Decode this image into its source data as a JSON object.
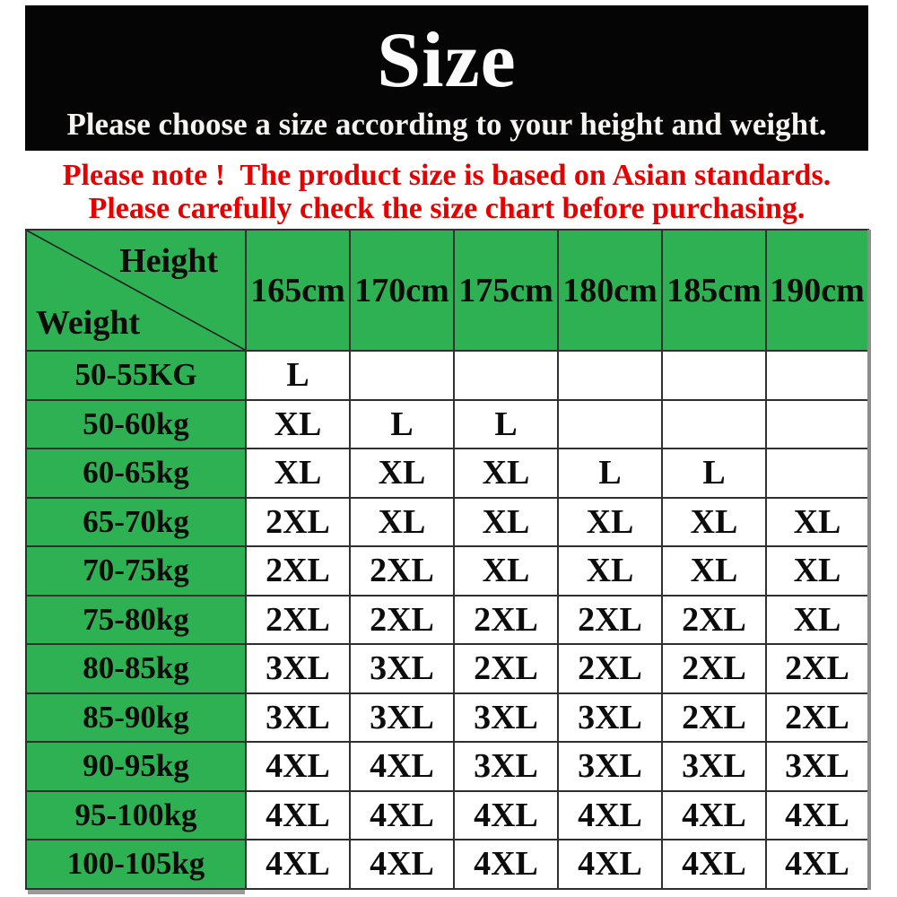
{
  "header": {
    "title": "Size",
    "subtitle": "Please choose a size according to your height and weight."
  },
  "notice": {
    "line1": "Please note !  The product size is based on Asian standards.",
    "line2": "Please carefully check the size chart before purchasing.",
    "color": "#e60000"
  },
  "size_chart": {
    "corner_labels": {
      "height": "Height",
      "weight": "Weight"
    },
    "columns": [
      "165cm",
      "170cm",
      "175cm",
      "180cm",
      "185cm",
      "190cm"
    ],
    "rows": [
      {
        "weight": "50-55KG",
        "sizes": [
          "L",
          "",
          "",
          "",
          "",
          ""
        ]
      },
      {
        "weight": "50-60kg",
        "sizes": [
          "XL",
          "L",
          "L",
          "",
          "",
          ""
        ]
      },
      {
        "weight": "60-65kg",
        "sizes": [
          "XL",
          "XL",
          "XL",
          "L",
          "L",
          ""
        ]
      },
      {
        "weight": "65-70kg",
        "sizes": [
          "2XL",
          "XL",
          "XL",
          "XL",
          "XL",
          "XL"
        ]
      },
      {
        "weight": "70-75kg",
        "sizes": [
          "2XL",
          "2XL",
          "XL",
          "XL",
          "XL",
          "XL"
        ]
      },
      {
        "weight": "75-80kg",
        "sizes": [
          "2XL",
          "2XL",
          "2XL",
          "2XL",
          "2XL",
          "XL"
        ]
      },
      {
        "weight": "80-85kg",
        "sizes": [
          "3XL",
          "3XL",
          "2XL",
          "2XL",
          "2XL",
          "2XL"
        ]
      },
      {
        "weight": "85-90kg",
        "sizes": [
          "3XL",
          "3XL",
          "3XL",
          "3XL",
          "2XL",
          "2XL"
        ]
      },
      {
        "weight": "90-95kg",
        "sizes": [
          "4XL",
          "4XL",
          "3XL",
          "3XL",
          "3XL",
          "3XL"
        ]
      },
      {
        "weight": "95-100kg",
        "sizes": [
          "4XL",
          "4XL",
          "4XL",
          "4XL",
          "4XL",
          "4XL"
        ]
      },
      {
        "weight": "100-105kg",
        "sizes": [
          "4XL",
          "4XL",
          "4XL",
          "4XL",
          "4XL",
          "4XL"
        ]
      }
    ]
  },
  "colors": {
    "banner_bg": "#050505",
    "banner_text": "#ffffff",
    "notice_red": "#e60000",
    "table_green": "#2db153",
    "cell_white": "#ffffff",
    "border_dark": "#303030"
  },
  "chart_data": {
    "type": "table",
    "title": "Size",
    "subtitle": "Please choose a size according to your height and weight.",
    "notes": [
      "Please note !  The product size is based on Asian standards.",
      "Please carefully check the size chart before purchasing."
    ],
    "corner": "Weight \\ Height",
    "columns": [
      "165cm",
      "170cm",
      "175cm",
      "180cm",
      "185cm",
      "190cm"
    ],
    "rows": [
      [
        "50-55KG",
        "L",
        "",
        "",
        "",
        "",
        ""
      ],
      [
        "50-60kg",
        "XL",
        "L",
        "L",
        "",
        "",
        ""
      ],
      [
        "60-65kg",
        "XL",
        "XL",
        "XL",
        "L",
        "L",
        ""
      ],
      [
        "65-70kg",
        "2XL",
        "XL",
        "XL",
        "XL",
        "XL",
        "XL"
      ],
      [
        "70-75kg",
        "2XL",
        "2XL",
        "XL",
        "XL",
        "XL",
        "XL"
      ],
      [
        "75-80kg",
        "2XL",
        "2XL",
        "2XL",
        "2XL",
        "2XL",
        "XL"
      ],
      [
        "80-85kg",
        "3XL",
        "3XL",
        "2XL",
        "2XL",
        "2XL",
        "2XL"
      ],
      [
        "85-90kg",
        "3XL",
        "3XL",
        "3XL",
        "3XL",
        "2XL",
        "2XL"
      ],
      [
        "90-95kg",
        "4XL",
        "4XL",
        "3XL",
        "3XL",
        "3XL",
        "3XL"
      ],
      [
        "95-100kg",
        "4XL",
        "4XL",
        "4XL",
        "4XL",
        "4XL",
        "4XL"
      ],
      [
        "100-105kg",
        "4XL",
        "4XL",
        "4XL",
        "4XL",
        "4XL",
        "4XL"
      ]
    ]
  }
}
